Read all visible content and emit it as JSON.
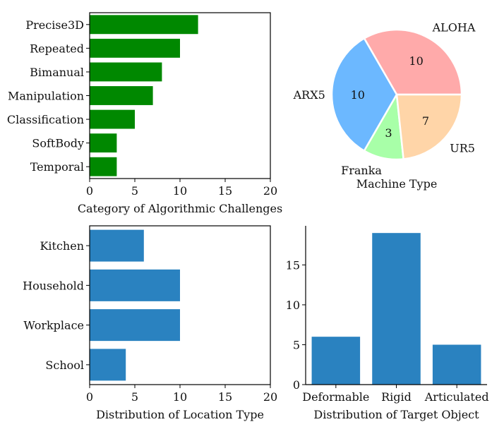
{
  "colors": {
    "green": "#008800",
    "blue": "#2a82c0",
    "pie_aloha": "#ffaaaa",
    "pie_arx5": "#6cb8ff",
    "pie_franka": "#a8ffa8",
    "pie_ur5": "#ffd5a8"
  },
  "chart_data": [
    {
      "type": "bar",
      "orientation": "horizontal",
      "title": "",
      "xlabel": "Category of Algorithmic Challenges",
      "ylabel": "",
      "categories": [
        "Precise3D",
        "Repeated",
        "Bimanual",
        "Manipulation",
        "Classification",
        "SoftBody",
        "Temporal"
      ],
      "values": [
        12,
        10,
        8,
        7,
        5,
        3,
        3
      ],
      "xlim": [
        0,
        20
      ],
      "xticks": [
        0,
        5,
        10,
        15,
        20
      ]
    },
    {
      "type": "pie",
      "title": "",
      "xlabel": "Machine Type",
      "labels": [
        "ALOHA",
        "ARX5",
        "Franka",
        "UR5"
      ],
      "values": [
        10,
        10,
        3,
        7
      ]
    },
    {
      "type": "bar",
      "orientation": "horizontal",
      "title": "",
      "xlabel": "Distribution of Location Type",
      "ylabel": "",
      "categories": [
        "Kitchen",
        "Household",
        "Workplace",
        "School"
      ],
      "values": [
        6,
        10,
        10,
        4
      ],
      "xlim": [
        0,
        20
      ],
      "xticks": [
        0,
        5,
        10,
        15,
        20
      ]
    },
    {
      "type": "bar",
      "orientation": "vertical",
      "title": "",
      "xlabel": "Distribution of Target Object",
      "ylabel": "",
      "categories": [
        "Deformable",
        "Rigid",
        "Articulated"
      ],
      "values": [
        6,
        19,
        5
      ],
      "ylim": [
        0,
        19.9
      ],
      "yticks": [
        0,
        5,
        10,
        15
      ]
    }
  ]
}
